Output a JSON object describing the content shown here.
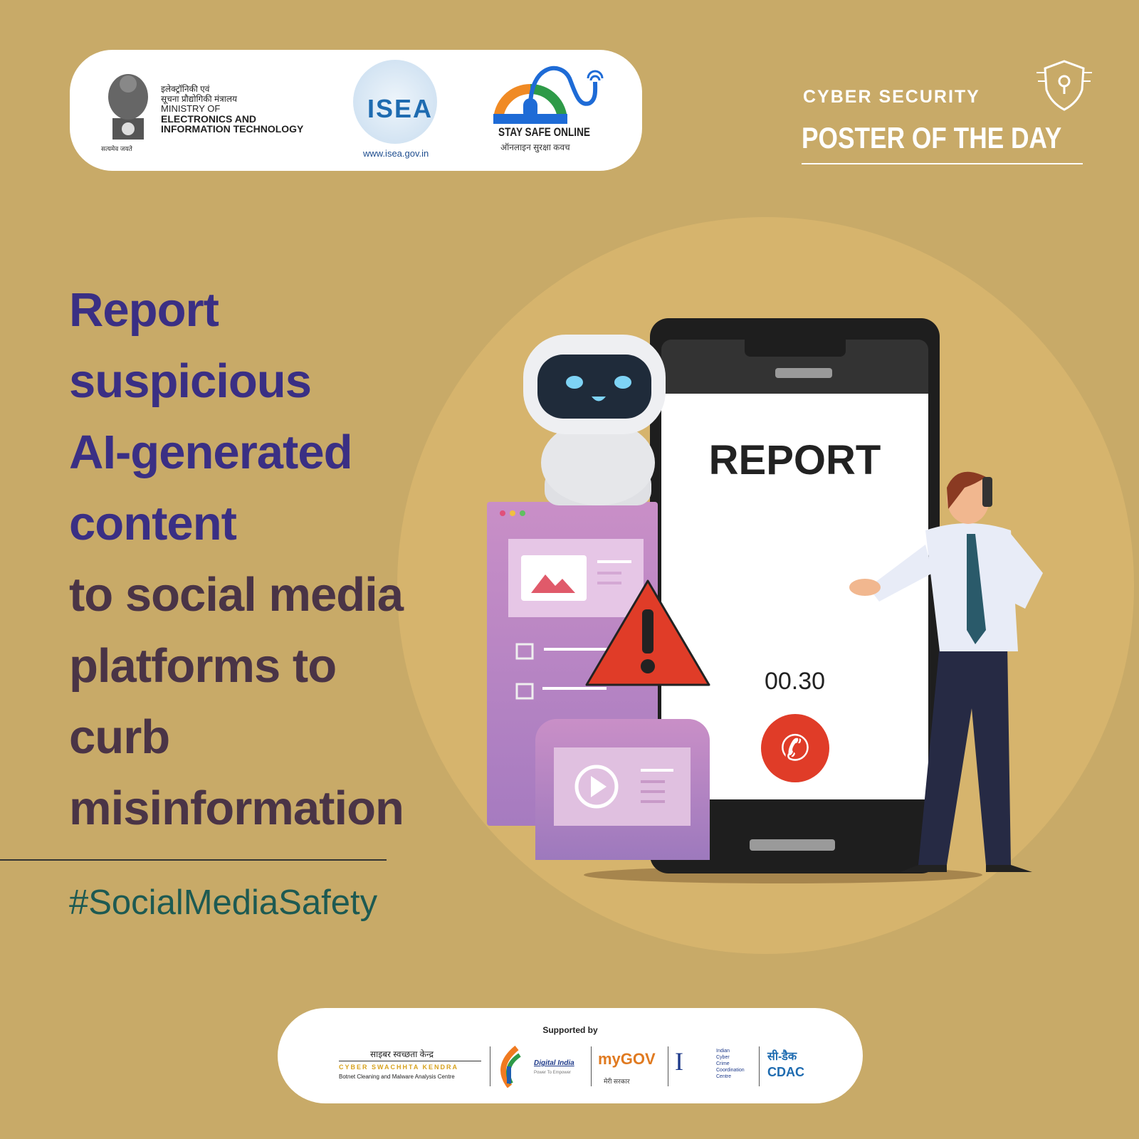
{
  "header": {
    "ministry_hindi_line1": "इलेक्ट्रॉनिकी एवं",
    "ministry_hindi_line2": "सूचना प्रौद्योगिकी मंत्रालय",
    "ministry_en_line1": "MINISTRY OF",
    "ministry_en_line2": "ELECTRONICS AND",
    "ministry_en_line3": "INFORMATION TECHNOLOGY",
    "emblem_motto": "सत्यमेव जयते",
    "isea_logo_text": "ISEA",
    "isea_url": "www.isea.gov.in",
    "stay_safe_title": "STAY SAFE ONLINE",
    "stay_safe_hindi": "ऑनलाइन सुरक्षा कवच"
  },
  "badge": {
    "line1": "CYBER SECURITY",
    "line2": "POSTER OF THE DAY",
    "icon": "shield-circuit-icon"
  },
  "headline": {
    "highlight": [
      "Report",
      "suspicious",
      "AI-generated",
      "content"
    ],
    "rest": [
      "to social media",
      "platforms to",
      "curb",
      "misinformation"
    ]
  },
  "hashtag": "#SocialMediaSafety",
  "phone": {
    "screen_title": "REPORT",
    "timer": "00.30",
    "call_icon": "phone-icon"
  },
  "footer": {
    "supported_by": "Supported by",
    "csk_hindi": "साइबर स्वच्छता केन्द्र",
    "csk_name": "CYBER SWACHHTA KENDRA",
    "csk_sub": "Botnet Cleaning and Malware Analysis Centre",
    "digital_india": "Digital India",
    "digital_india_sub": "Power To Empower",
    "mygov": "myGOV",
    "mygov_hindi": "मेरी सरकार",
    "i4c": [
      "Indian",
      "Cyber",
      "Crime",
      "Coordination",
      "Centre"
    ],
    "cdac_hindi": "सी-डैक",
    "cdac": "CDAC"
  },
  "colors": {
    "background": "#c8aa68",
    "circle": "#d6b46d",
    "headline_highlight": "#3a2f84",
    "headline_rest": "#4a3446",
    "hashtag": "#1d5a52",
    "alert": "#e03c28"
  }
}
